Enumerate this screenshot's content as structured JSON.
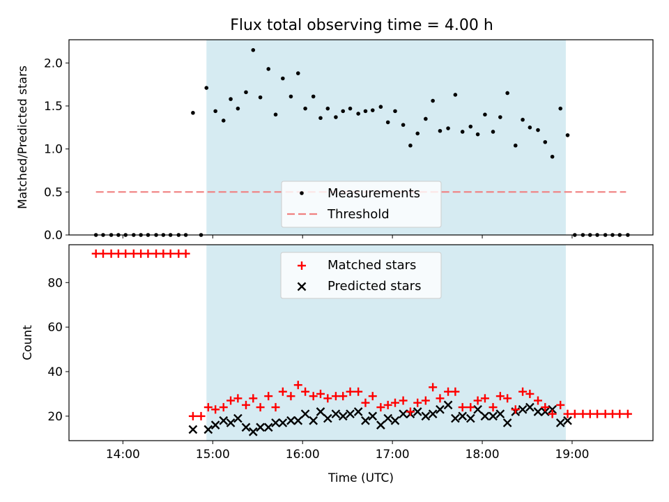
{
  "chart_data": [
    {
      "type": "scatter",
      "title": "Flux total observing time = 4.00 h",
      "xlabel": "",
      "ylabel": "Matched/Predicted stars",
      "ylim": [
        0,
        2.27
      ],
      "yticks": [
        "0.0",
        "0.5",
        "1.0",
        "1.5",
        "2.0"
      ],
      "ytick_values": [
        0,
        0.5,
        1.0,
        1.5,
        2.0
      ],
      "xlim": [
        13.4,
        19.9
      ],
      "xticks": [
        14,
        15,
        16,
        17,
        18,
        19
      ],
      "observing_window": [
        14.93,
        18.93
      ],
      "threshold": {
        "name": "Threshold",
        "value": 0.5,
        "x": [
          13.7,
          19.6
        ],
        "color": "#f08080"
      },
      "legend": {
        "placement": "lower-center",
        "entries": [
          "Measurements",
          "Threshold"
        ]
      },
      "series": [
        {
          "name": "Measurements",
          "color": "#000000",
          "x": [
            13.7,
            13.78,
            13.87,
            13.95,
            14.03,
            14.12,
            14.2,
            14.28,
            14.37,
            14.45,
            14.53,
            14.62,
            14.7,
            14.78,
            14.87,
            14.93,
            15.03,
            15.12,
            15.2,
            15.28,
            15.37,
            15.45,
            15.53,
            15.62,
            15.7,
            15.78,
            15.87,
            15.95,
            16.03,
            16.12,
            16.2,
            16.28,
            16.37,
            16.45,
            16.53,
            16.62,
            16.7,
            16.78,
            16.87,
            16.95,
            17.03,
            17.12,
            17.2,
            17.28,
            17.37,
            17.45,
            17.53,
            17.62,
            17.7,
            17.78,
            17.87,
            17.95,
            18.03,
            18.12,
            18.2,
            18.28,
            18.37,
            18.45,
            18.53,
            18.62,
            18.7,
            18.78,
            18.87,
            18.95,
            19.03,
            19.12,
            19.2,
            19.28,
            19.37,
            19.45,
            19.53,
            19.62
          ],
          "y": [
            0,
            0,
            0,
            0,
            0,
            0,
            0,
            0,
            0,
            0,
            0,
            0,
            0,
            1.42,
            0,
            1.71,
            1.44,
            1.33,
            1.58,
            1.47,
            1.66,
            2.15,
            1.6,
            1.93,
            1.4,
            1.82,
            1.61,
            1.88,
            1.47,
            1.61,
            1.36,
            1.47,
            1.37,
            1.44,
            1.47,
            1.41,
            1.44,
            1.45,
            1.49,
            1.31,
            1.44,
            1.28,
            1.04,
            1.18,
            1.35,
            1.56,
            1.21,
            1.24,
            1.63,
            1.2,
            1.26,
            1.17,
            1.4,
            1.2,
            1.37,
            1.65,
            1.04,
            1.34,
            1.25,
            1.22,
            1.08,
            0.91,
            1.47,
            1.16,
            0,
            0,
            0,
            0,
            0,
            0,
            0,
            0
          ]
        }
      ]
    },
    {
      "type": "scatter",
      "title": "",
      "xlabel": "Time (UTC)",
      "ylabel": "Count",
      "ylim": [
        9,
        97
      ],
      "yticks": [
        "20",
        "40",
        "60",
        "80"
      ],
      "ytick_values": [
        20,
        40,
        60,
        80
      ],
      "xlim": [
        13.4,
        19.9
      ],
      "xticks": [
        "14:00",
        "15:00",
        "16:00",
        "17:00",
        "18:00",
        "19:00"
      ],
      "xtick_values": [
        14,
        15,
        16,
        17,
        18,
        19
      ],
      "observing_window": [
        14.93,
        18.93
      ],
      "legend": {
        "placement": "upper-center",
        "entries": [
          "Matched stars",
          "Predicted stars"
        ]
      },
      "series": [
        {
          "name": "Matched stars",
          "marker": "plus",
          "color": "#ff0000",
          "x": [
            13.7,
            13.78,
            13.87,
            13.95,
            14.03,
            14.12,
            14.2,
            14.28,
            14.37,
            14.45,
            14.53,
            14.62,
            14.7,
            14.78,
            14.87,
            14.95,
            15.03,
            15.12,
            15.2,
            15.28,
            15.37,
            15.45,
            15.53,
            15.62,
            15.7,
            15.78,
            15.87,
            15.95,
            16.03,
            16.12,
            16.2,
            16.28,
            16.37,
            16.45,
            16.53,
            16.62,
            16.7,
            16.78,
            16.87,
            16.95,
            17.03,
            17.12,
            17.2,
            17.28,
            17.37,
            17.45,
            17.53,
            17.62,
            17.7,
            17.78,
            17.87,
            17.95,
            18.03,
            18.12,
            18.2,
            18.28,
            18.37,
            18.45,
            18.53,
            18.62,
            18.7,
            18.78,
            18.87,
            18.95,
            19.03,
            19.12,
            19.2,
            19.28,
            19.37,
            19.45,
            19.53,
            19.62
          ],
          "y": [
            93,
            93,
            93,
            93,
            93,
            93,
            93,
            93,
            93,
            93,
            93,
            93,
            93,
            20,
            20,
            24,
            23,
            24,
            27,
            28,
            25,
            28,
            24,
            29,
            24,
            31,
            29,
            34,
            31,
            29,
            30,
            28,
            29,
            29,
            31,
            31,
            26,
            29,
            24,
            25,
            26,
            27,
            22,
            26,
            27,
            33,
            28,
            31,
            31,
            24,
            24,
            27,
            28,
            24,
            29,
            28,
            23,
            31,
            30,
            27,
            24,
            21,
            25,
            21,
            21,
            21,
            21,
            21,
            21,
            21,
            21,
            21
          ]
        },
        {
          "name": "Predicted stars",
          "marker": "cross",
          "color": "#000000",
          "x": [
            14.78,
            14.95,
            15.03,
            15.12,
            15.2,
            15.28,
            15.37,
            15.45,
            15.53,
            15.62,
            15.7,
            15.78,
            15.87,
            15.95,
            16.03,
            16.12,
            16.2,
            16.28,
            16.37,
            16.45,
            16.53,
            16.62,
            16.7,
            16.78,
            16.87,
            16.95,
            17.03,
            17.12,
            17.2,
            17.28,
            17.37,
            17.45,
            17.53,
            17.62,
            17.7,
            17.78,
            17.87,
            17.95,
            18.03,
            18.12,
            18.2,
            18.28,
            18.37,
            18.45,
            18.53,
            18.62,
            18.7,
            18.78,
            18.87,
            18.95
          ],
          "y": [
            14,
            14,
            16,
            18,
            17,
            19,
            15,
            13,
            15,
            15,
            17,
            17,
            18,
            18,
            21,
            18,
            22,
            19,
            21,
            20,
            21,
            22,
            18,
            20,
            16,
            19,
            18,
            21,
            21,
            22,
            20,
            21,
            23,
            25,
            19,
            20,
            19,
            23,
            20,
            20,
            21,
            17,
            22,
            23,
            24,
            22,
            22,
            23,
            17,
            18
          ]
        }
      ]
    }
  ]
}
